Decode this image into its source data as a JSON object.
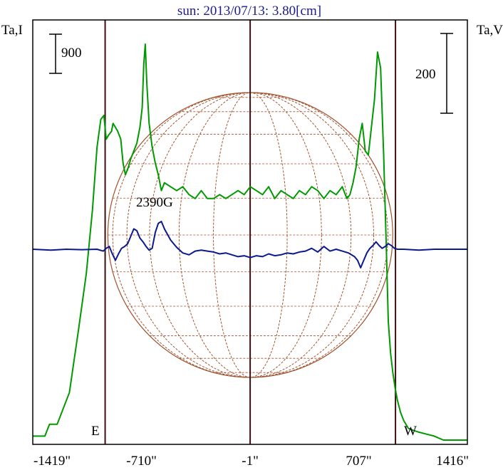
{
  "chart_data": {
    "type": "line",
    "title": "sun: 2013/07/13: 3.80[cm]",
    "left_axis_label": "Ta,I",
    "right_axis_label": "Ta,V",
    "left_scale_bar": "900",
    "right_scale_bar": "200",
    "annotation": "2390G",
    "east_label": "E",
    "west_label": "W",
    "x_ticks": [
      {
        "value": -1419,
        "label": "-1419\""
      },
      {
        "value": -710,
        "label": "-710\""
      },
      {
        "value": -1,
        "label": "-1\""
      },
      {
        "value": 707,
        "label": "707\""
      },
      {
        "value": 1416,
        "label": "1416\""
      }
    ],
    "xlim": [
      -1419,
      1416
    ],
    "vertical_lines": [
      -947,
      -1,
      947
    ],
    "colors": {
      "stokes_i": "#009900",
      "stokes_v": "#0a1a8c",
      "disk": "#a0522d",
      "title": "#1a1a8c",
      "frame": "#000000",
      "markers": "#3a1010"
    },
    "series": [
      {
        "name": "I",
        "x": [
          -1419,
          -1340,
          -1310,
          -1260,
          -1180,
          -1120,
          -1070,
          -1030,
          -1000,
          -975,
          -955,
          -940,
          -925,
          -905,
          -895,
          -880,
          -865,
          -845,
          -830,
          -815,
          -795,
          -780,
          -760,
          -740,
          -720,
          -705,
          -695,
          -685,
          -675,
          -660,
          -640,
          -620,
          -600,
          -580,
          -560,
          -520,
          -480,
          -440,
          -400,
          -360,
          -320,
          -280,
          -240,
          -200,
          -160,
          -120,
          -80,
          -40,
          0,
          40,
          80,
          120,
          160,
          200,
          240,
          280,
          320,
          360,
          400,
          440,
          480,
          520,
          560,
          600,
          630,
          650,
          670,
          690,
          710,
          730,
          750,
          770,
          790,
          810,
          830,
          850,
          870,
          885,
          900,
          915,
          930,
          945,
          960,
          980,
          1000,
          1030,
          1060,
          1100,
          1150,
          1200,
          1260,
          1330,
          1416
        ],
        "values": [
          0.01,
          0.01,
          0.04,
          0.04,
          0.12,
          0.28,
          0.42,
          0.58,
          0.74,
          0.81,
          0.82,
          0.76,
          0.77,
          0.78,
          0.8,
          0.79,
          0.78,
          0.76,
          0.7,
          0.67,
          0.69,
          0.71,
          0.73,
          0.75,
          0.79,
          0.84,
          0.95,
          1.0,
          0.9,
          0.8,
          0.74,
          0.7,
          0.67,
          0.63,
          0.65,
          0.64,
          0.63,
          0.64,
          0.62,
          0.61,
          0.63,
          0.61,
          0.61,
          0.62,
          0.61,
          0.62,
          0.63,
          0.62,
          0.64,
          0.63,
          0.62,
          0.64,
          0.61,
          0.63,
          0.62,
          0.61,
          0.63,
          0.62,
          0.64,
          0.63,
          0.61,
          0.63,
          0.62,
          0.64,
          0.61,
          0.62,
          0.65,
          0.69,
          0.76,
          0.8,
          0.73,
          0.72,
          0.79,
          0.86,
          0.98,
          0.94,
          0.72,
          0.52,
          0.3,
          0.22,
          0.17,
          0.13,
          0.1,
          0.07,
          0.05,
          0.03,
          0.025,
          0.02,
          0.015,
          0.01,
          0.0,
          0.0,
          0.0
        ]
      },
      {
        "name": "V",
        "x": [
          -1419,
          -1300,
          -1200,
          -1100,
          -1000,
          -960,
          -940,
          -920,
          -900,
          -880,
          -860,
          -840,
          -820,
          -800,
          -780,
          -760,
          -740,
          -720,
          -700,
          -680,
          -660,
          -640,
          -620,
          -600,
          -580,
          -560,
          -520,
          -480,
          -440,
          -400,
          -360,
          -320,
          -280,
          -240,
          -200,
          -160,
          -120,
          -80,
          -40,
          0,
          40,
          80,
          120,
          160,
          200,
          240,
          280,
          320,
          360,
          400,
          440,
          480,
          520,
          560,
          600,
          640,
          680,
          700,
          720,
          740,
          760,
          780,
          800,
          820,
          840,
          860,
          880,
          900,
          920,
          940,
          960,
          1000,
          1100,
          1200,
          1300,
          1416
        ],
        "values": [
          0.0,
          -0.01,
          0.0,
          -0.005,
          0.0,
          -0.02,
          0.01,
          0.03,
          -0.05,
          -0.12,
          -0.05,
          0.01,
          0.03,
          0.06,
          0.14,
          0.22,
          0.2,
          0.12,
          0.08,
          0.03,
          -0.01,
          0.01,
          0.18,
          0.28,
          0.3,
          0.22,
          0.1,
          0.02,
          -0.04,
          -0.06,
          -0.02,
          -0.01,
          -0.02,
          -0.03,
          -0.05,
          -0.04,
          -0.06,
          -0.08,
          -0.07,
          -0.09,
          -0.07,
          -0.08,
          -0.05,
          -0.07,
          -0.06,
          -0.04,
          -0.05,
          -0.03,
          -0.02,
          0.01,
          -0.03,
          0.03,
          -0.02,
          0.0,
          -0.02,
          -0.04,
          -0.08,
          -0.12,
          -0.2,
          -0.12,
          -0.04,
          0.01,
          0.04,
          0.08,
          0.04,
          0.01,
          0.03,
          0.06,
          0.04,
          0.01,
          0.0,
          0.0,
          -0.01,
          0.0,
          0.0,
          0.0
        ]
      }
    ],
    "grid": false,
    "legend": "none"
  }
}
